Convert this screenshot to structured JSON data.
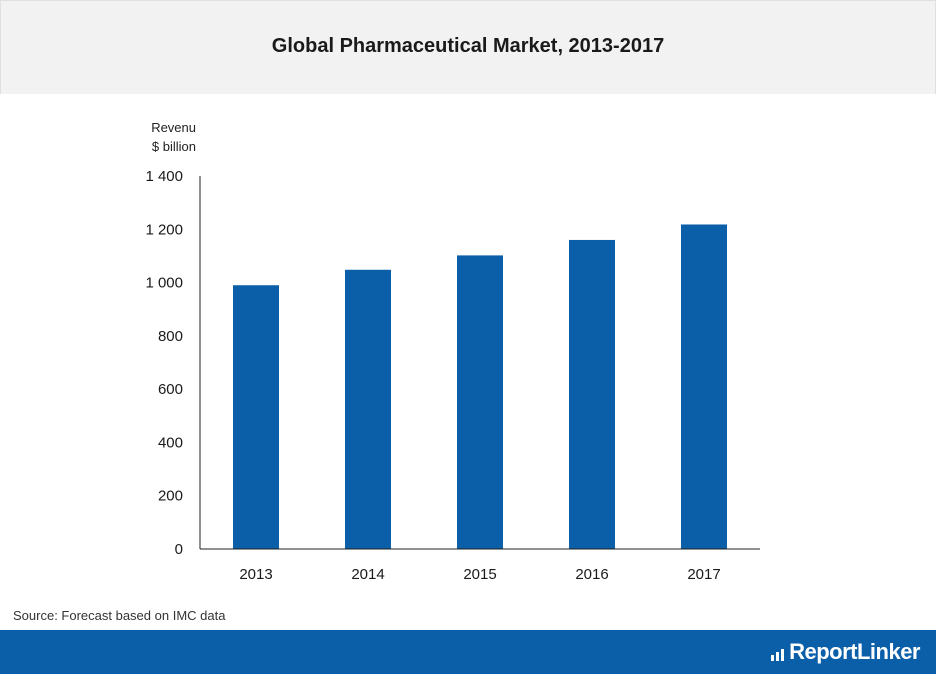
{
  "chart_data": {
    "type": "bar",
    "title": "Global Pharmaceutical Market, 2013-2017",
    "ylabel_lines": [
      "Revenu",
      "$ billion"
    ],
    "xlabel": "",
    "categories": [
      "2013",
      "2014",
      "2015",
      "2016",
      "2017"
    ],
    "values": [
      990,
      1048,
      1102,
      1160,
      1218
    ],
    "ylim": [
      0,
      1400
    ],
    "yticks": [
      0,
      200,
      400,
      600,
      800,
      1000,
      1200,
      1400
    ],
    "ytick_labels": [
      "0",
      "200",
      "400",
      "600",
      "800",
      "1 000",
      "1 200",
      "1 400"
    ],
    "bar_color": "#0b5ea8",
    "grid": false,
    "legend": "none"
  },
  "source": "Source: Forecast based on IMC data",
  "brand": {
    "name": "ReportLinker",
    "footer_color": "#0b5ea8"
  }
}
